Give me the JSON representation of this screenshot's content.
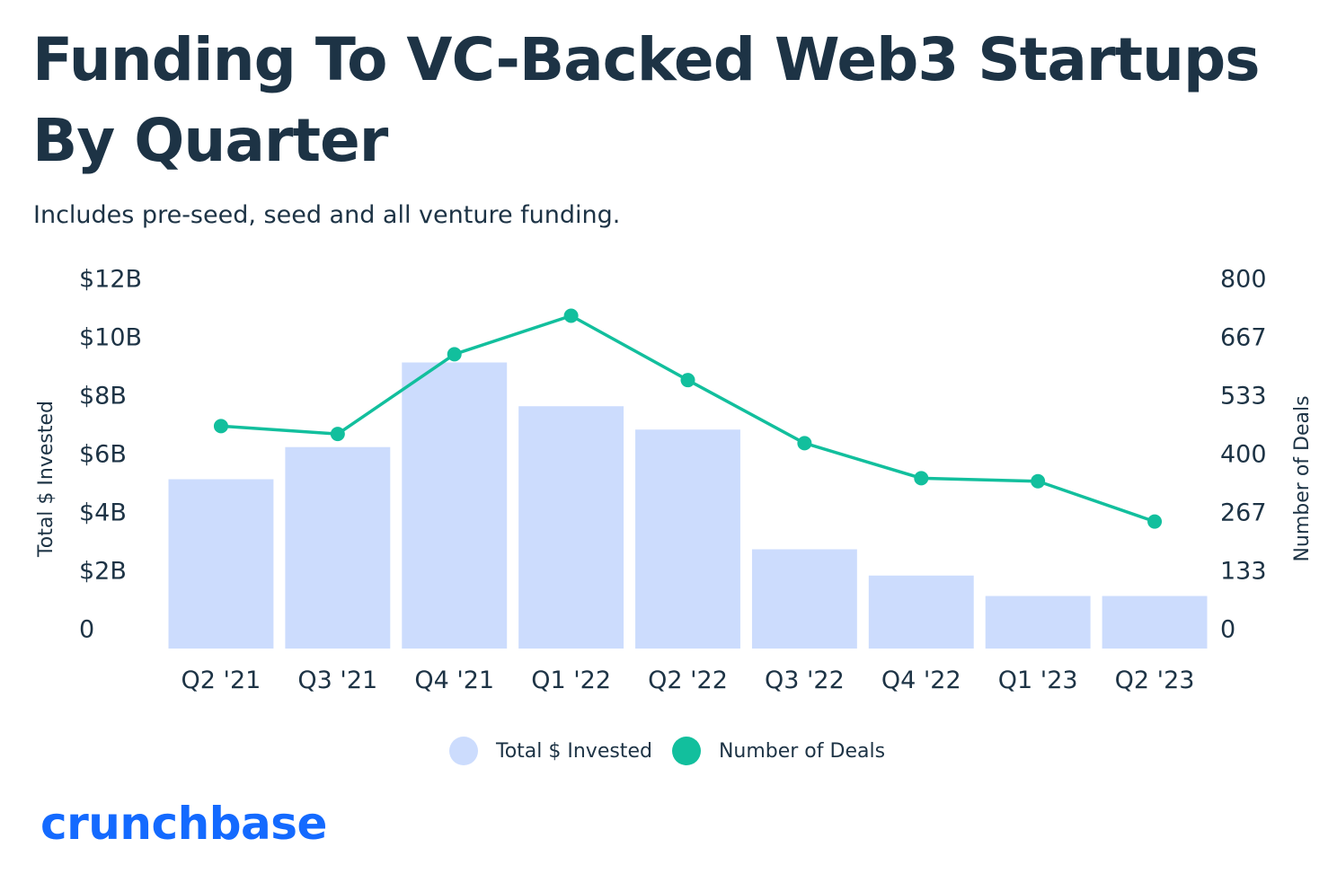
{
  "title": "Funding To VC-Backed Web3 Startups By Quarter",
  "subtitle": "Includes pre-seed, seed and all venture funding.",
  "logo_text": "crunchbase",
  "colors": {
    "bar": "#ccdcfd",
    "line": "#12bf9d",
    "text": "#1d3345",
    "logo": "#146aff"
  },
  "legend": {
    "invested": "Total $ Invested",
    "deals": "Number of Deals"
  },
  "chart_data": {
    "type": "bar",
    "categories": [
      "Q2 '21",
      "Q3 '21",
      "Q4 '21",
      "Q1 '22",
      "Q2 '22",
      "Q3 '22",
      "Q4 '22",
      "Q1 '23",
      "Q2 '23"
    ],
    "series": [
      {
        "name": "Total $ Invested",
        "type": "bar",
        "axis": "left",
        "unit": "billion USD",
        "values": [
          5.8,
          6.9,
          9.8,
          8.3,
          7.5,
          3.4,
          2.5,
          1.8,
          1.8
        ]
      },
      {
        "name": "Number of Deals",
        "type": "line",
        "axis": "right",
        "values": [
          508,
          490,
          672,
          760,
          613,
          469,
          389,
          382,
          290
        ]
      }
    ],
    "left_axis": {
      "label": "Total $ Invested",
      "ylim": [
        0,
        12
      ],
      "ticks": [
        0,
        2,
        4,
        6,
        8,
        10,
        12
      ],
      "tick_labels": [
        "0",
        "$2B",
        "$4B",
        "$6B",
        "$8B",
        "$10B",
        "$12B"
      ]
    },
    "right_axis": {
      "label": "Number of Deals",
      "ylim": [
        0,
        800
      ],
      "ticks": [
        0,
        133,
        267,
        400,
        533,
        667,
        800
      ],
      "tick_labels": [
        "0",
        "133",
        "267",
        "400",
        "533",
        "667",
        "800"
      ]
    },
    "grid": false,
    "legend_position": "bottom-center"
  }
}
